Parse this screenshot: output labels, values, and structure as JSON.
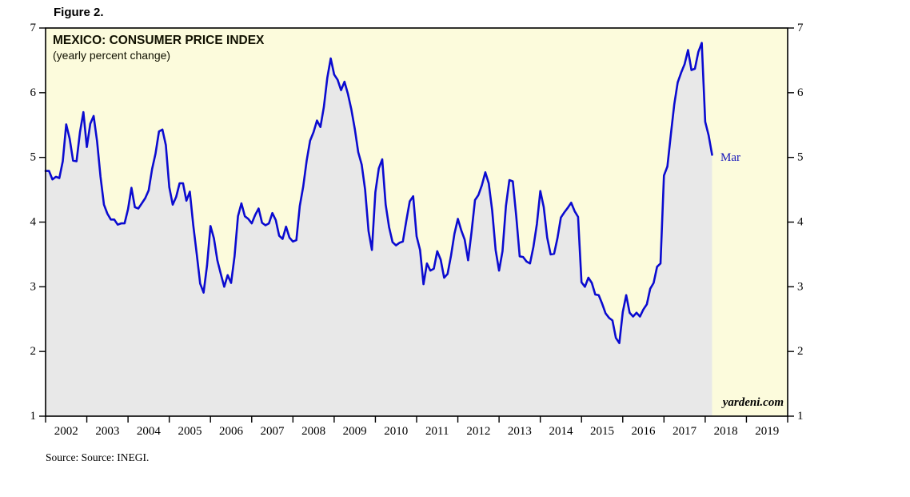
{
  "figure_label": "Figure 2.",
  "chart": {
    "title": "MEXICO: CONSUMER PRICE INDEX",
    "subtitle": "(yearly percent change)",
    "watermark": "yardeni.com",
    "annotation_label": "Mar",
    "source_note": "Source: Source: INEGI."
  },
  "colors": {
    "line": "#0b0bd0",
    "plot_background": "#fcfbdc",
    "area_fill": "#e8e8e8",
    "axis": "#000000",
    "annotation": "#1414bb"
  },
  "chart_data": {
    "type": "line",
    "title": "MEXICO: CONSUMER PRICE INDEX (yearly percent change)",
    "series_name": "Mexico CPI, yearly percent change",
    "frequency": "monthly",
    "start": "2002-01",
    "end": "2018-03",
    "ylim": [
      1,
      7
    ],
    "yticks": [
      1,
      2,
      3,
      4,
      5,
      6,
      7
    ],
    "x_range_years": [
      2002,
      2020
    ],
    "x_axis_years": [
      "2002",
      "2003",
      "2004",
      "2005",
      "2006",
      "2007",
      "2008",
      "2009",
      "2010",
      "2011",
      "2012",
      "2013",
      "2014",
      "2015",
      "2016",
      "2017",
      "2018",
      "2019"
    ],
    "grid": false,
    "legend": false,
    "last_point": {
      "label": "Mar",
      "value": 5.04
    },
    "values": [
      4.79,
      4.79,
      4.66,
      4.7,
      4.68,
      4.94,
      5.51,
      5.29,
      4.95,
      4.94,
      5.39,
      5.7,
      5.16,
      5.52,
      5.64,
      5.25,
      4.7,
      4.27,
      4.13,
      4.04,
      4.04,
      3.96,
      3.98,
      3.98,
      4.2,
      4.53,
      4.23,
      4.21,
      4.29,
      4.37,
      4.49,
      4.82,
      5.06,
      5.4,
      5.43,
      5.19,
      4.54,
      4.27,
      4.39,
      4.6,
      4.6,
      4.33,
      4.47,
      3.95,
      3.51,
      3.05,
      2.91,
      3.33,
      3.94,
      3.75,
      3.41,
      3.2,
      3.0,
      3.18,
      3.06,
      3.47,
      4.09,
      4.29,
      4.09,
      4.05,
      3.98,
      4.11,
      4.21,
      3.99,
      3.95,
      3.98,
      4.14,
      4.03,
      3.79,
      3.74,
      3.93,
      3.76,
      3.7,
      3.72,
      4.25,
      4.55,
      4.95,
      5.26,
      5.39,
      5.57,
      5.47,
      5.78,
      6.23,
      6.53,
      6.28,
      6.2,
      6.04,
      6.17,
      5.98,
      5.74,
      5.44,
      5.08,
      4.89,
      4.5,
      3.86,
      3.57,
      4.46,
      4.83,
      4.97,
      4.27,
      3.92,
      3.69,
      3.64,
      3.68,
      3.7,
      4.02,
      4.32,
      4.4,
      3.78,
      3.57,
      3.04,
      3.36,
      3.25,
      3.28,
      3.55,
      3.42,
      3.14,
      3.2,
      3.48,
      3.82,
      4.05,
      3.87,
      3.73,
      3.41,
      3.85,
      4.34,
      4.42,
      4.57,
      4.77,
      4.6,
      4.18,
      3.57,
      3.25,
      3.55,
      4.25,
      4.65,
      4.63,
      4.09,
      3.47,
      3.46,
      3.39,
      3.36,
      3.62,
      3.97,
      4.48,
      4.23,
      3.76,
      3.5,
      3.51,
      3.75,
      4.07,
      4.15,
      4.22,
      4.3,
      4.17,
      4.08,
      3.07,
      3.0,
      3.14,
      3.06,
      2.88,
      2.87,
      2.74,
      2.59,
      2.52,
      2.48,
      2.21,
      2.13,
      2.61,
      2.87,
      2.6,
      2.54,
      2.6,
      2.54,
      2.65,
      2.73,
      2.97,
      3.06,
      3.31,
      3.36,
      4.72,
      4.86,
      5.35,
      5.82,
      6.16,
      6.31,
      6.44,
      6.66,
      6.35,
      6.37,
      6.63,
      6.77,
      5.55,
      5.34,
      5.04
    ]
  }
}
